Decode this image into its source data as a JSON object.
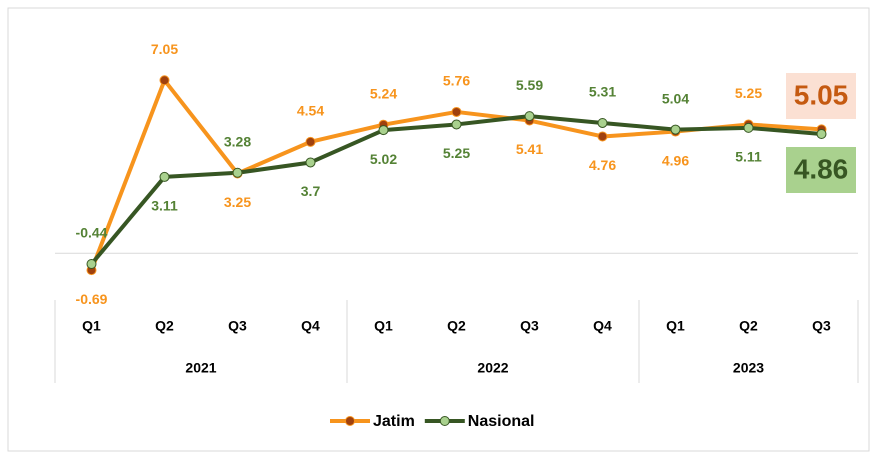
{
  "chart_data": {
    "type": "line",
    "categories": [
      "Q1",
      "Q2",
      "Q3",
      "Q4",
      "Q1",
      "Q2",
      "Q3",
      "Q4",
      "Q1",
      "Q2",
      "Q3"
    ],
    "x_groups": [
      {
        "label": "2021",
        "count": 4
      },
      {
        "label": "2022",
        "count": 4
      },
      {
        "label": "2023",
        "count": 3
      }
    ],
    "series": [
      {
        "name": "Jatim",
        "color": "#f7941d",
        "marker_color": "#a0410d",
        "values": [
          -0.69,
          7.05,
          3.25,
          4.54,
          5.24,
          5.76,
          5.41,
          4.76,
          4.96,
          5.25,
          5.05
        ]
      },
      {
        "name": "Nasional",
        "color": "#375623",
        "marker_color": "#a9d18e",
        "values": [
          -0.44,
          3.11,
          3.28,
          3.7,
          5.02,
          5.25,
          5.59,
          5.31,
          5.04,
          5.11,
          4.86
        ]
      }
    ],
    "ylim": [
      -1.5,
      8
    ],
    "legend": "bottom"
  }
}
